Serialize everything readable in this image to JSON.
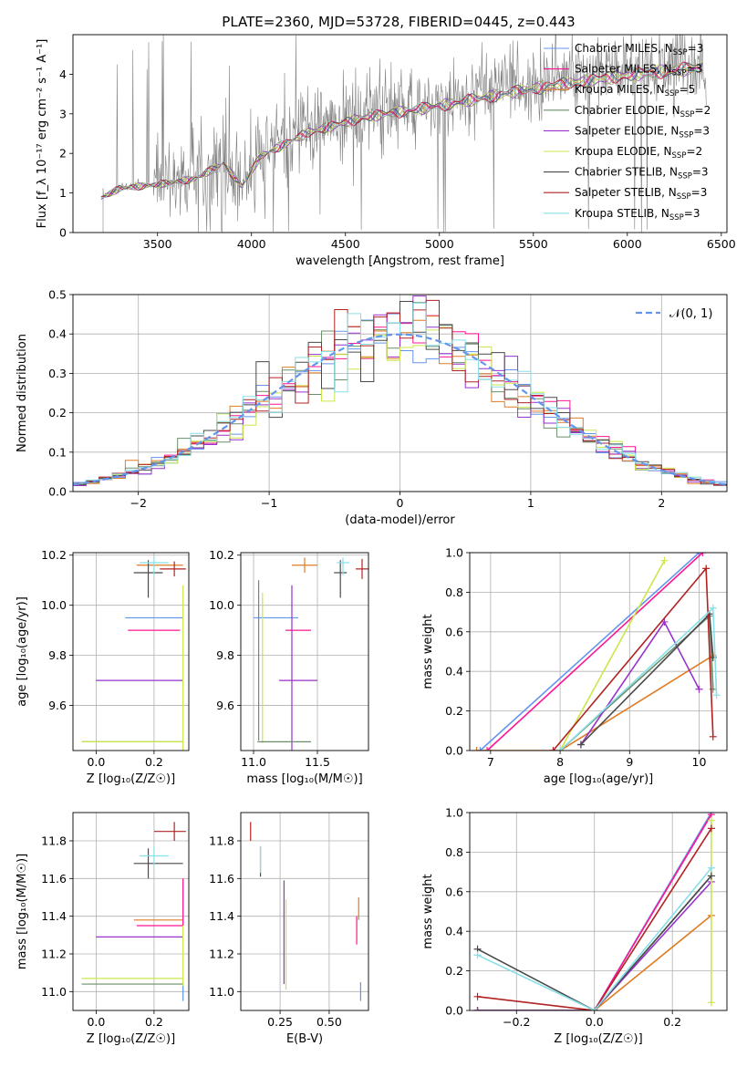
{
  "figure_title": "PLATE=2360, MJD=53728, FIBERID=0445, z=0.443",
  "colors": {
    "data": "#808080",
    "Chabrier MILES": "#6495ed",
    "Salpeter MILES": "#ff1493",
    "Kroupa MILES": "#e07b22",
    "Chabrier ELODIE": "#6b8e6b",
    "Salpeter ELODIE": "#9932cc",
    "Kroupa ELODIE": "#c8e84a",
    "Chabrier STELIB": "#4a4a4a",
    "Salpeter STELIB": "#b22222",
    "Kroupa STELIB": "#87dfe8"
  },
  "chart_data": [
    {
      "id": "spectrum",
      "type": "line",
      "title": "PLATE=2360, MJD=53728, FIBERID=0445, z=0.443",
      "xlabel": "wavelength [Angstrom, rest frame]",
      "ylabel": "Flux [f_λ 10⁻¹⁷ erg cm⁻² s⁻¹ A⁻¹]",
      "xlim": [
        3050,
        6530
      ],
      "ylim": [
        0,
        5
      ],
      "xticks": [
        3500,
        4000,
        4500,
        5000,
        5500,
        6000,
        6500
      ],
      "yticks": [
        0,
        1,
        2,
        3,
        4
      ],
      "grid": false,
      "legend_position": "right",
      "legend": [
        {
          "model": "Chabrier MILES",
          "label": "Chabrier MILES, N",
          "sub": "SSP",
          "n": "=3"
        },
        {
          "model": "Salpeter MILES",
          "label": "Salpeter MILES, N",
          "sub": "SSP",
          "n": "=3"
        },
        {
          "model": "Kroupa MILES",
          "label": "Kroupa MILES, N",
          "sub": "SSP",
          "n": "=5"
        },
        {
          "model": "Chabrier ELODIE",
          "label": "Chabrier ELODIE, N",
          "sub": "SSP",
          "n": "=2"
        },
        {
          "model": "Salpeter ELODIE",
          "label": "Salpeter ELODIE, N",
          "sub": "SSP",
          "n": "=3"
        },
        {
          "model": "Kroupa ELODIE",
          "label": "Kroupa ELODIE, N",
          "sub": "SSP",
          "n": "=2"
        },
        {
          "model": "Chabrier STELIB",
          "label": "Chabrier STELIB, N",
          "sub": "SSP",
          "n": "=3"
        },
        {
          "model": "Salpeter STELIB",
          "label": "Salpeter STELIB, N",
          "sub": "SSP",
          "n": "=3"
        },
        {
          "model": "Kroupa STELIB",
          "label": "Kroupa STELIB, N",
          "sub": "SSP",
          "n": "=3"
        }
      ],
      "continuum": [
        [
          3200,
          0.9
        ],
        [
          3300,
          1.15
        ],
        [
          3500,
          1.25
        ],
        [
          3700,
          1.4
        ],
        [
          3850,
          1.8
        ],
        [
          3950,
          1.2
        ],
        [
          4050,
          2.0
        ],
        [
          4300,
          2.6
        ],
        [
          4600,
          3.0
        ],
        [
          5000,
          3.3
        ],
        [
          5500,
          3.75
        ],
        [
          6000,
          4.1
        ],
        [
          6400,
          4.3
        ]
      ],
      "data_range": [
        3210,
        6420
      ],
      "data_spike_max": 5
    },
    {
      "id": "residuals",
      "type": "histogram",
      "xlabel": "(data-model)/error",
      "ylabel": "Normed distribution",
      "xlim": [
        -2.5,
        2.5
      ],
      "ylim": [
        0,
        0.5
      ],
      "xticks": [
        -2,
        -1,
        0,
        1,
        2
      ],
      "yticks": [
        0.0,
        0.1,
        0.2,
        0.3,
        0.4,
        0.5
      ],
      "grid": true,
      "legend_position": "top-right",
      "legend": [
        {
          "label": "𝒩(0, 1)",
          "style": "dashed"
        }
      ],
      "bin_width": 0.1
    },
    {
      "id": "age_vs_Z",
      "type": "errorbar",
      "xlabel": "Z [log₁₀(Z/Z☉)]",
      "ylabel": "age  [log₁₀(age/yr)]",
      "xlim": [
        -0.08,
        0.32
      ],
      "ylim": [
        9.42,
        10.21
      ],
      "xticks": [
        0.0,
        0.2
      ],
      "yticks": [
        9.6,
        9.8,
        10.0,
        10.2
      ],
      "grid": true,
      "points": [
        {
          "model": "Chabrier MILES",
          "x": 0.2,
          "y": 9.95,
          "xerr": [
            0.1,
            0.1
          ],
          "yerr": [
            0.0,
            0.0
          ]
        },
        {
          "model": "Salpeter MILES",
          "x": 0.2,
          "y": 9.9,
          "xerr": [
            0.09,
            0.09
          ],
          "yerr": [
            0.0,
            0.0
          ]
        },
        {
          "model": "Kroupa MILES",
          "x": 0.22,
          "y": 10.16,
          "xerr": [
            0.08,
            0.08
          ],
          "yerr": [
            0.0,
            0.0
          ]
        },
        {
          "model": "Chabrier ELODIE",
          "x": 0.2,
          "y": 9.455,
          "xerr": [
            0.25,
            0.1
          ],
          "yerr": [
            0.0,
            0.0
          ]
        },
        {
          "model": "Salpeter ELODIE",
          "x": 0.2,
          "y": 9.7,
          "xerr": [
            0.2,
            0.1
          ],
          "yerr": [
            0.0,
            0.0
          ]
        },
        {
          "model": "Kroupa ELODIE",
          "x": 0.2,
          "y": 9.455,
          "xerr": [
            0.25,
            0.1
          ],
          "yerr": [
            0.0,
            0.0
          ]
        },
        {
          "model": "Chabrier STELIB",
          "x": 0.18,
          "y": 10.13,
          "xerr": [
            0.05,
            0.05
          ],
          "yerr": [
            0.1,
            0.05
          ]
        },
        {
          "model": "Salpeter STELIB",
          "x": 0.27,
          "y": 10.145,
          "xerr": [
            0.05,
            0.04
          ],
          "yerr": [
            0.03,
            0.03
          ]
        },
        {
          "model": "Kroupa STELIB",
          "x": 0.2,
          "y": 10.17,
          "xerr": [
            0.05,
            0.05
          ],
          "yerr": [
            0.05,
            0.02
          ]
        },
        {
          "model": "Kroupa ELODIE",
          "x": 0.3,
          "y": 9.75,
          "xerr": [
            0.0,
            0.0
          ],
          "yerr": [
            0.33,
            0.33
          ]
        }
      ]
    },
    {
      "id": "age_vs_mass",
      "type": "errorbar",
      "xlabel": "mass [log₁₀(M/M☉)]",
      "ylabel": "",
      "xlim": [
        10.9,
        11.9
      ],
      "ylim": [
        9.42,
        10.21
      ],
      "xticks": [
        11.0,
        11.5
      ],
      "yticks": [
        9.6,
        9.8,
        10.0,
        10.2
      ],
      "grid": true,
      "points": [
        {
          "model": "Chabrier MILES",
          "x": 11.2,
          "y": 9.95,
          "xerr": [
            0.2,
            0.15
          ],
          "yerr": [
            0.0,
            0.0
          ]
        },
        {
          "model": "Salpeter MILES",
          "x": 11.35,
          "y": 9.9,
          "xerr": [
            0.1,
            0.1
          ],
          "yerr": [
            0.0,
            0.0
          ]
        },
        {
          "model": "Kroupa MILES",
          "x": 11.4,
          "y": 10.16,
          "xerr": [
            0.1,
            0.1
          ],
          "yerr": [
            0.03,
            0.03
          ]
        },
        {
          "model": "Chabrier ELODIE",
          "x": 11.04,
          "y": 9.78,
          "xerr": [
            0.0,
            0.0
          ],
          "yerr": [
            0.32,
            0.32
          ]
        },
        {
          "model": "Salpeter ELODIE",
          "x": 11.3,
          "y": 9.7,
          "xerr": [
            0.1,
            0.2
          ],
          "yerr": [
            0.28,
            0.38
          ]
        },
        {
          "model": "Kroupa ELODIE",
          "x": 11.07,
          "y": 9.75,
          "xerr": [
            0.0,
            0.0
          ],
          "yerr": [
            0.3,
            0.3
          ]
        },
        {
          "model": "Chabrier STELIB",
          "x": 11.68,
          "y": 10.13,
          "xerr": [
            0.05,
            0.05
          ],
          "yerr": [
            0.1,
            0.05
          ]
        },
        {
          "model": "Salpeter STELIB",
          "x": 11.85,
          "y": 10.145,
          "xerr": [
            0.05,
            0.05
          ],
          "yerr": [
            0.04,
            0.04
          ]
        },
        {
          "model": "Kroupa STELIB",
          "x": 11.7,
          "y": 10.17,
          "xerr": [
            0.05,
            0.05
          ],
          "yerr": [
            0.05,
            0.02
          ]
        },
        {
          "model": "Chabrier ELODIE",
          "x": 11.15,
          "y": 9.455,
          "xerr": [
            0.12,
            0.3
          ],
          "yerr": [
            0.0,
            0.0
          ]
        }
      ]
    },
    {
      "id": "massweight_vs_age",
      "type": "line",
      "xlabel": "age  [log₁₀(age/yr)]",
      "ylabel": "mass weight",
      "xlim": [
        6.7,
        10.4
      ],
      "ylim": [
        0,
        1
      ],
      "xticks": [
        7,
        8,
        9,
        10
      ],
      "yticks": [
        0.0,
        0.2,
        0.4,
        0.6,
        0.8,
        1.0
      ],
      "grid": true,
      "series": [
        {
          "model": "Chabrier MILES",
          "x": [
            6.85,
            10.0
          ],
          "y": [
            0.0,
            1.0
          ]
        },
        {
          "model": "Salpeter MILES",
          "x": [
            6.95,
            10.05
          ],
          "y": [
            0.0,
            1.0
          ]
        },
        {
          "model": "Kroupa MILES",
          "x": [
            6.8,
            8.0,
            10.2
          ],
          "y": [
            0.0,
            0.0,
            0.48
          ]
        },
        {
          "model": "Chabrier ELODIE",
          "x": [
            8.0,
            10.15,
            10.2
          ],
          "y": [
            0.0,
            0.68,
            0.31
          ]
        },
        {
          "model": "Salpeter ELODIE",
          "x": [
            8.3,
            9.5,
            10.0
          ],
          "y": [
            0.03,
            0.65,
            0.31
          ]
        },
        {
          "model": "Kroupa ELODIE",
          "x": [
            8.0,
            9.5
          ],
          "y": [
            0.0,
            0.96
          ]
        },
        {
          "model": "Chabrier STELIB",
          "x": [
            8.3,
            10.15,
            10.2
          ],
          "y": [
            0.03,
            0.69,
            0.47
          ]
        },
        {
          "model": "Salpeter STELIB",
          "x": [
            7.9,
            10.1,
            10.2
          ],
          "y": [
            0.0,
            0.92,
            0.07
          ]
        },
        {
          "model": "Kroupa STELIB",
          "x": [
            8.0,
            10.2,
            10.25
          ],
          "y": [
            0.0,
            0.72,
            0.28
          ]
        }
      ]
    },
    {
      "id": "mass_vs_Z",
      "type": "errorbar",
      "xlabel": "Z [log₁₀(Z/Z☉)]",
      "ylabel": "mass [log₁₀(M/M☉)]",
      "xlim": [
        -0.08,
        0.32
      ],
      "ylim": [
        10.9,
        11.95
      ],
      "xticks": [
        0.0,
        0.2
      ],
      "yticks": [
        11.0,
        11.2,
        11.4,
        11.6,
        11.8
      ],
      "grid": true,
      "points": [
        {
          "model": "Chabrier MILES",
          "x": 0.3,
          "y": 11.0,
          "xerr": [
            0.0,
            0.0
          ],
          "yerr": [
            0.05,
            0.05
          ]
        },
        {
          "model": "Salpeter MILES",
          "x": 0.22,
          "y": 11.35,
          "xerr": [
            0.08,
            0.08
          ],
          "yerr": [
            0.0,
            0.0
          ]
        },
        {
          "model": "Kroupa MILES",
          "x": 0.2,
          "y": 11.38,
          "xerr": [
            0.07,
            0.1
          ],
          "yerr": [
            0.0,
            0.0
          ]
        },
        {
          "model": "Chabrier ELODIE",
          "x": 0.2,
          "y": 11.04,
          "xerr": [
            0.25,
            0.1
          ],
          "yerr": [
            0.0,
            0.0
          ]
        },
        {
          "model": "Salpeter ELODIE",
          "x": 0.2,
          "y": 11.29,
          "xerr": [
            0.2,
            0.1
          ],
          "yerr": [
            0.0,
            0.0
          ]
        },
        {
          "model": "Kroupa ELODIE",
          "x": 0.2,
          "y": 11.07,
          "xerr": [
            0.25,
            0.1
          ],
          "yerr": [
            0.0,
            0.0
          ]
        },
        {
          "model": "Chabrier STELIB",
          "x": 0.18,
          "y": 11.68,
          "xerr": [
            0.05,
            0.12
          ],
          "yerr": [
            0.08,
            0.08
          ]
        },
        {
          "model": "Salpeter STELIB",
          "x": 0.27,
          "y": 11.85,
          "xerr": [
            0.07,
            0.04
          ],
          "yerr": [
            0.05,
            0.05
          ]
        },
        {
          "model": "Kroupa STELIB",
          "x": 0.2,
          "y": 11.72,
          "xerr": [
            0.05,
            0.05
          ],
          "yerr": [
            0.05,
            0.05
          ]
        },
        {
          "model": "Kroupa ELODIE",
          "x": 0.3,
          "y": 11.3,
          "xerr": [
            0.0,
            0.0
          ],
          "yerr": [
            0.27,
            0.27
          ]
        },
        {
          "model": "Salpeter MILES",
          "x": 0.3,
          "y": 11.45,
          "xerr": [
            0.0,
            0.0
          ],
          "yerr": [
            0.1,
            0.15
          ]
        }
      ]
    },
    {
      "id": "mass_vs_EBV",
      "type": "errorbar",
      "xlabel": "E(B-V)",
      "ylabel": "",
      "xlim": [
        0.05,
        0.7
      ],
      "ylim": [
        10.9,
        11.95
      ],
      "xticks": [
        0.25,
        0.5
      ],
      "yticks": [
        11.0,
        11.2,
        11.4,
        11.6,
        11.8
      ],
      "grid": true,
      "points": [
        {
          "model": "Salpeter STELIB",
          "x": 0.1,
          "y": 11.85,
          "xerr": [
            0.0,
            0.0
          ],
          "yerr": [
            0.05,
            0.05
          ]
        },
        {
          "model": "Chabrier STELIB",
          "x": 0.15,
          "y": 11.69,
          "xerr": [
            0.0,
            0.0
          ],
          "yerr": [
            0.08,
            0.08
          ]
        },
        {
          "model": "Kroupa STELIB",
          "x": 0.15,
          "y": 11.7,
          "xerr": [
            0.0,
            0.0
          ],
          "yerr": [
            0.07,
            0.07
          ]
        },
        {
          "model": "Salpeter ELODIE",
          "x": 0.27,
          "y": 11.29,
          "xerr": [
            0.0,
            0.0
          ],
          "yerr": [
            0.25,
            0.3
          ]
        },
        {
          "model": "Kroupa ELODIE",
          "x": 0.28,
          "y": 11.25,
          "xerr": [
            0.0,
            0.0
          ],
          "yerr": [
            0.24,
            0.24
          ]
        },
        {
          "model": "Kroupa MILES",
          "x": 0.65,
          "y": 11.38,
          "xerr": [
            0.0,
            0.0
          ],
          "yerr": [
            0.0,
            0.12
          ]
        },
        {
          "model": "Salpeter MILES",
          "x": 0.64,
          "y": 11.35,
          "xerr": [
            0.0,
            0.0
          ],
          "yerr": [
            0.1,
            0.05
          ]
        },
        {
          "model": "Chabrier MILES",
          "x": 0.66,
          "y": 11.0,
          "xerr": [
            0.0,
            0.0
          ],
          "yerr": [
            0.05,
            0.05
          ]
        }
      ]
    },
    {
      "id": "massweight_vs_Z",
      "type": "line",
      "xlabel": "Z [log₁₀(Z/Z☉)]",
      "ylabel": "mass weight",
      "xlim": [
        -0.32,
        0.34
      ],
      "ylim": [
        0,
        1
      ],
      "xticks": [
        -0.2,
        0.0,
        0.2
      ],
      "yticks": [
        0.0,
        0.2,
        0.4,
        0.6,
        0.8,
        1.0
      ],
      "grid": true,
      "series": [
        {
          "model": "Chabrier MILES",
          "x": [
            -0.3,
            0.0,
            0.3
          ],
          "y": [
            0.0,
            0.0,
            1.0
          ]
        },
        {
          "model": "Salpeter MILES",
          "x": [
            -0.3,
            0.0,
            0.3
          ],
          "y": [
            0.0,
            0.0,
            0.99
          ]
        },
        {
          "model": "Kroupa MILES",
          "x": [
            -0.3,
            0.0,
            0.3
          ],
          "y": [
            0.0,
            0.0,
            0.48
          ]
        },
        {
          "model": "Chabrier ELODIE",
          "x": [
            -0.3,
            0.0,
            0.3
          ],
          "y": [
            0.0,
            0.0,
            0.68
          ]
        },
        {
          "model": "Salpeter ELODIE",
          "x": [
            -0.3,
            0.0,
            0.3
          ],
          "y": [
            0.0,
            0.0,
            0.65
          ]
        },
        {
          "model": "Kroupa ELODIE",
          "x": [
            0.3,
            0.3
          ],
          "y": [
            0.96,
            0.04
          ]
        },
        {
          "model": "Chabrier STELIB",
          "x": [
            -0.3,
            0.0,
            0.3
          ],
          "y": [
            0.31,
            0.0,
            0.68
          ]
        },
        {
          "model": "Salpeter STELIB",
          "x": [
            -0.3,
            0.0,
            0.3
          ],
          "y": [
            0.07,
            0.0,
            0.92
          ]
        },
        {
          "model": "Kroupa STELIB",
          "x": [
            -0.3,
            0.0,
            0.3
          ],
          "y": [
            0.28,
            0.0,
            0.72
          ]
        }
      ]
    }
  ]
}
